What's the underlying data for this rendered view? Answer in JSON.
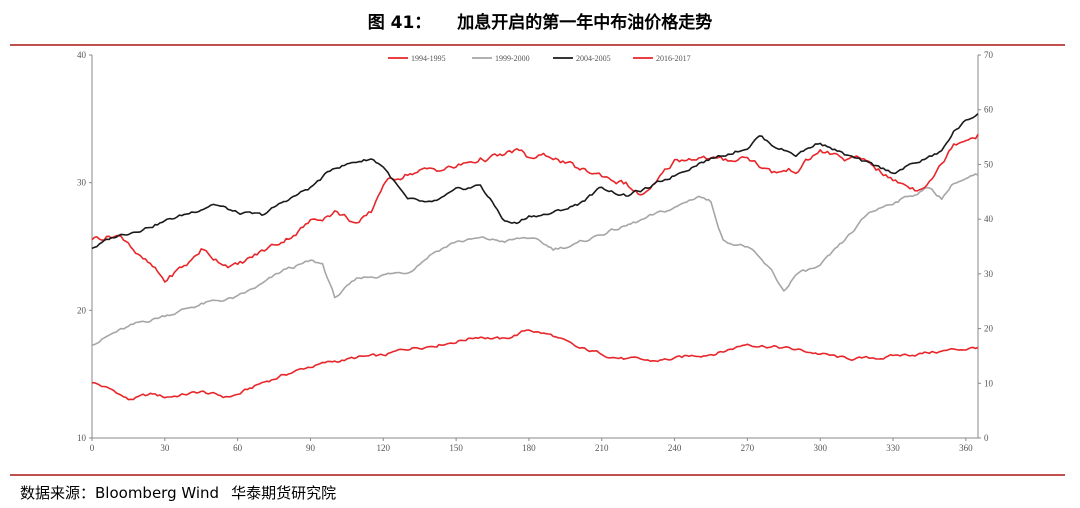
{
  "figure": {
    "label": "图 41：",
    "title": "加息开启的第一年中布油价格走势"
  },
  "source": {
    "label": "数据来源：Bloomberg Wind",
    "org": "华泰期货研究院"
  },
  "colors": {
    "rule": "#c0504d",
    "s1994": "#e8262a",
    "s1999": "#a6a6a6",
    "s2004": "#1a1a1a",
    "s2016": "#e8262a"
  },
  "chart_data": {
    "type": "line",
    "title": "",
    "xlabel": "",
    "ylabel": "",
    "xlim": [
      0,
      365
    ],
    "ylim_left": [
      10,
      40
    ],
    "ylim_right": [
      0,
      70
    ],
    "x_ticks": [
      "0",
      "30",
      "60",
      "90",
      "120",
      "150",
      "180",
      "210",
      "240",
      "270",
      "300",
      "330",
      "360"
    ],
    "y_left_ticks": [
      "10",
      "20",
      "30",
      "40"
    ],
    "y_right_ticks": [
      "0",
      "10",
      "20",
      "30",
      "40",
      "50",
      "60",
      "70"
    ],
    "legend_position": "top",
    "grid": false,
    "series": [
      {
        "name": "1994-1995",
        "axis": "left",
        "color": "#e8262a",
        "x": [
          0,
          10,
          15,
          25,
          30,
          45,
          55,
          60,
          70,
          80,
          90,
          100,
          110,
          120,
          130,
          140,
          150,
          160,
          170,
          180,
          190,
          200,
          210,
          220,
          230,
          240,
          250,
          260,
          270,
          280,
          290,
          300,
          310,
          320,
          330,
          340,
          350,
          360,
          365
        ],
        "y": [
          14.4,
          13.6,
          13.0,
          13.4,
          13.2,
          13.6,
          13.2,
          13.4,
          14.3,
          15.0,
          15.6,
          16.0,
          16.3,
          16.4,
          17.0,
          17.3,
          17.6,
          18.0,
          17.7,
          18.5,
          18.0,
          17.0,
          16.6,
          16.2,
          16.0,
          16.2,
          16.5,
          16.8,
          17.4,
          17.2,
          16.9,
          16.6,
          16.2,
          16.2,
          16.4,
          16.6,
          16.8,
          17.0,
          17.1
        ]
      },
      {
        "name": "1999-2000",
        "axis": "left",
        "color": "#a6a6a6",
        "x": [
          0,
          10,
          20,
          30,
          45,
          60,
          70,
          80,
          90,
          95,
          100,
          110,
          120,
          130,
          140,
          150,
          160,
          170,
          180,
          190,
          200,
          210,
          220,
          230,
          240,
          250,
          255,
          260,
          270,
          280,
          285,
          290,
          300,
          310,
          320,
          330,
          340,
          345,
          350,
          355,
          360,
          365
        ],
        "y": [
          17.4,
          18.3,
          19.0,
          19.6,
          20.5,
          21.0,
          22.0,
          23.2,
          23.8,
          23.6,
          21.0,
          22.5,
          22.8,
          23.0,
          24.5,
          25.4,
          25.6,
          25.4,
          25.7,
          24.8,
          25.2,
          26.0,
          26.6,
          27.3,
          28.0,
          29.0,
          28.5,
          25.5,
          25.0,
          23.0,
          21.5,
          22.8,
          23.4,
          25.4,
          27.6,
          28.5,
          29.2,
          29.6,
          28.8,
          30.0,
          30.3,
          30.6
        ]
      },
      {
        "name": "2004-2005",
        "axis": "left",
        "color": "#1a1a1a",
        "x": [
          0,
          10,
          20,
          30,
          40,
          50,
          60,
          70,
          80,
          90,
          100,
          110,
          115,
          120,
          130,
          140,
          150,
          160,
          170,
          175,
          180,
          190,
          200,
          210,
          220,
          230,
          240,
          250,
          260,
          270,
          275,
          280,
          290,
          300,
          310,
          320,
          330,
          340,
          350,
          355,
          360,
          365
        ],
        "y": [
          24.9,
          25.8,
          26.4,
          27.0,
          27.6,
          28.4,
          27.6,
          27.4,
          28.6,
          29.6,
          31.2,
          31.7,
          31.9,
          31.3,
          28.6,
          28.3,
          29.3,
          29.8,
          27.0,
          26.8,
          27.4,
          27.6,
          28.3,
          29.6,
          29.0,
          29.6,
          30.6,
          31.6,
          32.2,
          32.8,
          33.7,
          33.0,
          32.2,
          33.2,
          32.2,
          31.4,
          30.8,
          31.6,
          32.4,
          34.0,
          34.8,
          35.4
        ]
      },
      {
        "name": "2016-2017",
        "axis": "right",
        "color": "#e8262a",
        "x": [
          0,
          10,
          15,
          20,
          25,
          30,
          35,
          40,
          45,
          50,
          55,
          60,
          70,
          80,
          90,
          100,
          110,
          115,
          120,
          130,
          140,
          150,
          160,
          170,
          175,
          180,
          190,
          200,
          210,
          220,
          225,
          230,
          240,
          250,
          260,
          270,
          280,
          290,
          300,
          310,
          320,
          330,
          340,
          345,
          350,
          355,
          360,
          365
        ],
        "y": [
          36.5,
          37.2,
          36.0,
          33.0,
          31.0,
          28.5,
          30.5,
          32.0,
          34.5,
          33.0,
          32.0,
          31.5,
          34.0,
          36.5,
          39.5,
          41.5,
          39.0,
          41.0,
          46.5,
          48.5,
          49.0,
          49.5,
          51.0,
          51.5,
          52.5,
          51.0,
          51.5,
          49.0,
          48.0,
          46.5,
          44.5,
          45.0,
          50.5,
          51.5,
          50.5,
          51.5,
          48.5,
          49.0,
          52.5,
          51.0,
          50.5,
          47.0,
          45.5,
          47.5,
          50.0,
          54.0,
          55.0,
          55.5
        ]
      }
    ]
  }
}
